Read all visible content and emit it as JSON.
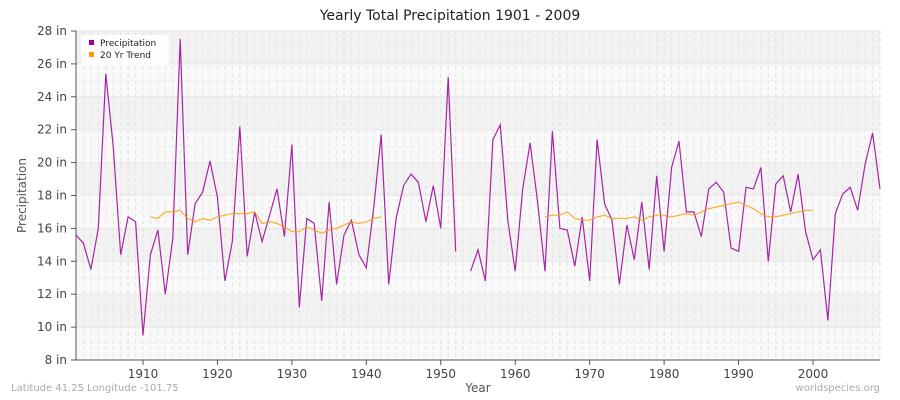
{
  "title": "Yearly Total Precipitation 1901 - 2009",
  "footer": {
    "location": "Latitude 41.25 Longitude -101.75",
    "source": "worldspecies.org"
  },
  "legend": [
    {
      "label": "Precipitation",
      "color": "#990099"
    },
    {
      "label": "20 Yr Trend",
      "color": "#ff9900"
    }
  ],
  "chart_data": {
    "type": "line",
    "title": "Yearly Total Precipitation 1901 - 2009",
    "xlabel": "Year",
    "ylabel": "Precipitation",
    "ylim": [
      8,
      28
    ],
    "xlim": [
      1901,
      2009
    ],
    "yticks": [
      "8 in",
      "10 in",
      "12 in",
      "14 in",
      "16 in",
      "18 in",
      "20 in",
      "22 in",
      "24 in",
      "26 in",
      "28 in"
    ],
    "xticks": [
      1910,
      1920,
      1930,
      1940,
      1950,
      1960,
      1970,
      1980,
      1990,
      2000
    ],
    "legend_position": "top-left",
    "grid": true,
    "x_start": 1901,
    "series": [
      {
        "name": "Precipitation",
        "color": "#990099",
        "values": [
          15.6,
          15.1,
          13.5,
          16.0,
          25.4,
          21.0,
          14.4,
          16.7,
          16.4,
          9.5,
          14.4,
          15.9,
          12.0,
          15.4,
          27.5,
          14.4,
          17.5,
          18.2,
          20.1,
          17.9,
          12.8,
          15.2,
          22.2,
          14.3,
          17.0,
          15.2,
          16.8,
          18.4,
          15.5,
          21.1,
          11.2,
          16.6,
          16.3,
          11.6,
          17.6,
          12.6,
          15.6,
          16.5,
          14.4,
          13.6,
          17.3,
          21.7,
          12.6,
          16.6,
          18.6,
          19.3,
          18.8,
          16.4,
          18.6,
          16.0,
          25.2,
          14.6,
          null,
          13.4,
          14.7,
          12.8,
          21.4,
          22.3,
          16.5,
          13.4,
          18.4,
          21.2,
          17.6,
          13.4,
          21.9,
          16.0,
          15.9,
          13.7,
          16.7,
          12.8,
          21.4,
          17.5,
          16.5,
          12.6,
          16.2,
          14.1,
          17.6,
          13.5,
          19.2,
          14.6,
          19.7,
          21.3,
          17.0,
          17.0,
          15.5,
          18.4,
          18.8,
          18.2,
          14.8,
          14.6,
          18.5,
          18.4,
          19.7,
          14.0,
          18.7,
          19.2,
          17.0,
          19.3,
          15.8,
          14.1,
          14.7,
          10.4,
          16.9,
          18.1,
          18.5,
          17.1,
          19.9,
          21.8,
          18.4
        ]
      },
      {
        "name": "20 Yr Trend",
        "color": "#ff9900",
        "values": [
          null,
          null,
          null,
          null,
          null,
          null,
          null,
          null,
          null,
          null,
          16.7,
          16.6,
          17.0,
          17.0,
          17.1,
          16.6,
          16.4,
          16.6,
          16.5,
          16.7,
          16.8,
          16.9,
          16.9,
          16.9,
          17.0,
          16.3,
          16.4,
          16.3,
          16.1,
          15.8,
          15.8,
          16.1,
          15.9,
          15.7,
          15.9,
          16.0,
          16.2,
          16.4,
          16.3,
          16.4,
          16.6,
          16.7,
          null,
          null,
          null,
          null,
          null,
          null,
          null,
          null,
          null,
          null,
          null,
          null,
          null,
          null,
          null,
          null,
          null,
          null,
          null,
          null,
          null,
          16.7,
          16.8,
          16.8,
          17.0,
          16.6,
          16.5,
          16.5,
          16.7,
          16.8,
          16.6,
          16.6,
          16.6,
          16.7,
          16.5,
          16.7,
          16.8,
          16.8,
          16.7,
          16.8,
          16.9,
          16.8,
          17.0,
          17.2,
          17.3,
          17.4,
          17.5,
          17.6,
          17.4,
          17.2,
          16.9,
          16.7,
          16.7,
          16.8,
          16.9,
          17.0,
          17.1,
          17.1,
          null,
          null,
          null,
          null,
          null,
          null,
          null,
          null,
          null,
          null
        ]
      }
    ]
  }
}
